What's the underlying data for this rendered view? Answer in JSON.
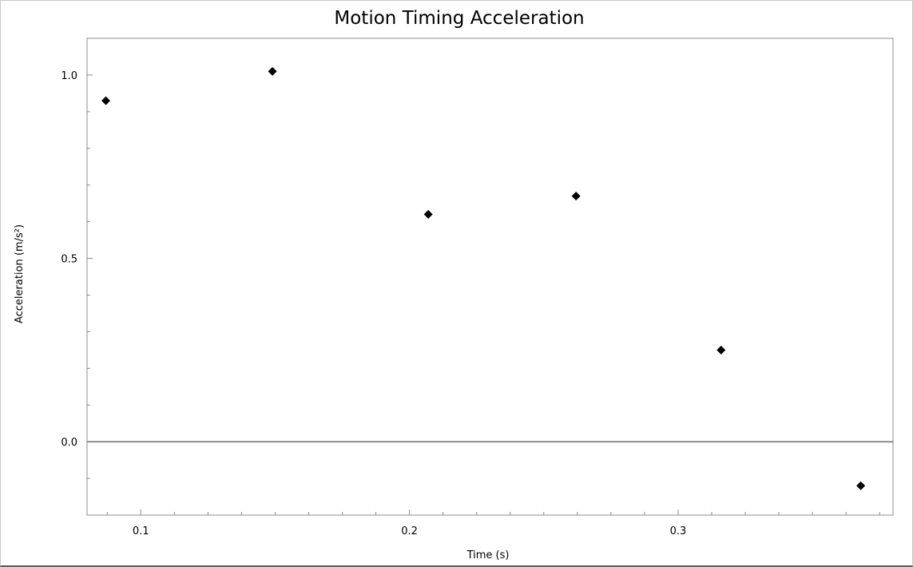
{
  "chart_data": {
    "type": "scatter",
    "title": "Motion Timing Acceleration",
    "xlabel": "Time (s)",
    "ylabel": "Acceleration (m/s²)",
    "xlim": [
      0.08,
      0.38
    ],
    "ylim": [
      -0.2,
      1.1
    ],
    "x_major_ticks": [
      0.1,
      0.2,
      0.3
    ],
    "x_minor_step": 0.0125,
    "y_major_ticks": [
      0.0,
      0.5,
      1.0
    ],
    "y_minor_step": 0.1,
    "x_tick_labels": [
      "0.1",
      "0.2",
      "0.3"
    ],
    "y_tick_labels": [
      "0.0",
      "0.5",
      "1.0"
    ],
    "zero_line": true,
    "grid": false,
    "legend": "none",
    "marker": "diamond",
    "marker_color": "#000000",
    "axis_color": "#8c8c8c",
    "zero_line_color": "#8c8c8c",
    "series": [
      {
        "x": [
          0.087,
          0.149,
          0.207,
          0.262,
          0.316,
          0.368
        ],
        "y": [
          0.93,
          1.01,
          0.62,
          0.67,
          0.25,
          -0.12
        ]
      }
    ]
  }
}
